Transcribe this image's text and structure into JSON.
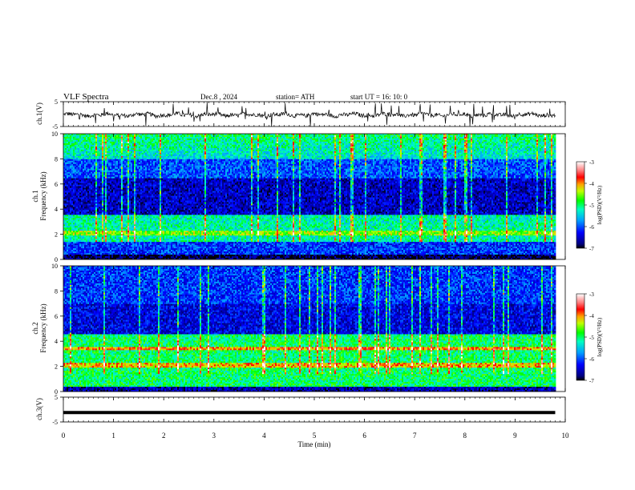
{
  "header": {
    "title": "VLF  Spectra",
    "date": "Dec.8  , 2024",
    "station": "station= ATH",
    "start": "start  UT  =   16: 10: 0"
  },
  "chart_data": [
    {
      "type": "line",
      "name": "ch1-waveform",
      "ylabel": "ch.1(V)",
      "ylim": [
        -5,
        5
      ],
      "yticks": [
        "5",
        "-5"
      ],
      "xlim": [
        0,
        10
      ],
      "trace_extent_min": 9.8
    },
    {
      "type": "heatmap",
      "name": "ch1-spectrogram",
      "ylabel": "ch.1\nFrequency (kHz)",
      "ylim": [
        0,
        10
      ],
      "yticks": [
        "0",
        "2",
        "4",
        "6",
        "8",
        "10"
      ],
      "xlim": [
        0,
        10
      ],
      "colorbar": {
        "label": "log(PSD)(V²/Hz)",
        "range": [
          -7,
          -3
        ],
        "ticks": [
          "-3",
          "-4",
          "-5",
          "-6",
          "-7"
        ]
      }
    },
    {
      "type": "heatmap",
      "name": "ch2-spectrogram",
      "ylabel": "ch.2\nFrequency (kHz)",
      "ylim": [
        0,
        10
      ],
      "yticks": [
        "0",
        "2",
        "4",
        "6",
        "8",
        "10"
      ],
      "xlim": [
        0,
        10
      ],
      "colorbar": {
        "label": "log(PSD)(V²/Hz)",
        "range": [
          -7,
          -3
        ],
        "ticks": [
          "-3",
          "-4",
          "-5",
          "-6",
          "-7"
        ]
      }
    },
    {
      "type": "line",
      "name": "ch3-waveform",
      "ylabel": "ch.3(V)",
      "ylim": [
        -5,
        5
      ],
      "yticks": [
        "5",
        "-5"
      ],
      "xlim": [
        0,
        10
      ],
      "level_v": -1.2
    }
  ],
  "xaxis": {
    "label": "Time  (min)",
    "ticks": [
      "0",
      "1",
      "2",
      "3",
      "4",
      "5",
      "6",
      "7",
      "8",
      "9",
      "10"
    ]
  }
}
